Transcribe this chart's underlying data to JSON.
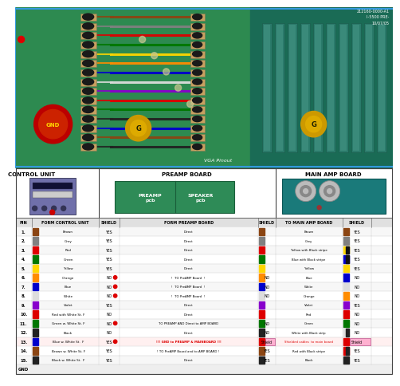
{
  "rows": [
    {
      "pin": "1.",
      "ctrl": "Brown",
      "ctrl_color": "#8B4513",
      "ctrl_shield": "YES",
      "ctrl_shield_dot": false,
      "preamp": "Direct",
      "preamp_color": "#8B4513",
      "preamp_shield": "",
      "preamp_shield_is_shield": false,
      "amp": "Brown",
      "amp_color": "#8B4513",
      "amp_stripe_color": "",
      "amp_shield": "YES",
      "amp_shield_is_shield": false,
      "row_highlight": false
    },
    {
      "pin": "2.",
      "ctrl": "Grey",
      "ctrl_color": "#808080",
      "ctrl_shield": "YES",
      "ctrl_shield_dot": false,
      "preamp": "Direct",
      "preamp_color": "#808080",
      "preamp_shield": "",
      "preamp_shield_is_shield": false,
      "amp": "Grey",
      "amp_color": "#808080",
      "amp_stripe_color": "",
      "amp_shield": "YES",
      "amp_shield_is_shield": false,
      "row_highlight": false
    },
    {
      "pin": "3.",
      "ctrl": "Red",
      "ctrl_color": "#DD0000",
      "ctrl_shield": "YES",
      "ctrl_shield_dot": false,
      "preamp": "Direct",
      "preamp_color": "#DD0000",
      "preamp_shield": "",
      "preamp_shield_is_shield": false,
      "amp": "Yellow with Black stripe",
      "amp_color": "#FFD700",
      "amp_stripe_color": "#111111",
      "amp_shield": "YES",
      "amp_shield_is_shield": false,
      "row_highlight": false
    },
    {
      "pin": "4.",
      "ctrl": "Green",
      "ctrl_color": "#007700",
      "ctrl_shield": "YES",
      "ctrl_shield_dot": false,
      "preamp": "Direct",
      "preamp_color": "#007700",
      "preamp_shield": "",
      "preamp_shield_is_shield": false,
      "amp": "Blue with Black stripe",
      "amp_color": "#0000CC",
      "amp_stripe_color": "#111111",
      "amp_shield": "YES",
      "amp_shield_is_shield": false,
      "row_highlight": false
    },
    {
      "pin": "5.",
      "ctrl": "Yellow",
      "ctrl_color": "#FFD700",
      "ctrl_shield": "YES",
      "ctrl_shield_dot": false,
      "preamp": "Direct",
      "preamp_color": "#FFD700",
      "preamp_shield": "",
      "preamp_shield_is_shield": false,
      "amp": "Yellow",
      "amp_color": "#FFD700",
      "amp_stripe_color": "",
      "amp_shield": "YES",
      "amp_shield_is_shield": false,
      "row_highlight": false
    },
    {
      "pin": "6.",
      "ctrl": "Orange",
      "ctrl_color": "#FF8C00",
      "ctrl_shield": "NO",
      "ctrl_shield_dot": true,
      "preamp": "!  TO PreAMP Board  !",
      "preamp_color": "#FF8C00",
      "preamp_shield": "NO",
      "preamp_shield_is_shield": false,
      "amp": "Blue",
      "amp_color": "#0000CC",
      "amp_stripe_color": "",
      "amp_shield": "NO",
      "amp_shield_is_shield": false,
      "row_highlight": false
    },
    {
      "pin": "7.",
      "ctrl": "Blue",
      "ctrl_color": "#0000CC",
      "ctrl_shield": "NO",
      "ctrl_shield_dot": true,
      "preamp": "!  TO PreAMP Board  !",
      "preamp_color": "#0000CC",
      "preamp_shield": "NO",
      "preamp_shield_is_shield": false,
      "amp": "White",
      "amp_color": "#DDDDDD",
      "amp_stripe_color": "",
      "amp_shield": "NO",
      "amp_shield_is_shield": false,
      "row_highlight": false
    },
    {
      "pin": "8.",
      "ctrl": "White",
      "ctrl_color": "#DDDDDD",
      "ctrl_shield": "NO",
      "ctrl_shield_dot": true,
      "preamp": "!  TO PreAMP Board  !",
      "preamp_color": "#DDDDDD",
      "preamp_shield": "NO",
      "preamp_shield_is_shield": false,
      "amp": "Orange",
      "amp_color": "#FF8C00",
      "amp_stripe_color": "",
      "amp_shield": "NO",
      "amp_shield_is_shield": false,
      "row_highlight": false
    },
    {
      "pin": "9.",
      "ctrl": "Violet",
      "ctrl_color": "#8800CC",
      "ctrl_shield": "YES",
      "ctrl_shield_dot": false,
      "preamp": "Direct",
      "preamp_color": "#8800CC",
      "preamp_shield": "",
      "preamp_shield_is_shield": false,
      "amp": "Violet",
      "amp_color": "#8800CC",
      "amp_stripe_color": "",
      "amp_shield": "YES",
      "amp_shield_is_shield": false,
      "row_highlight": false
    },
    {
      "pin": "10.",
      "ctrl": "Red with White St. F",
      "ctrl_color": "#DD0000",
      "ctrl_shield": "NO",
      "ctrl_shield_dot": false,
      "preamp": "Direct",
      "preamp_color": "#DD0000",
      "preamp_shield": "",
      "preamp_shield_is_shield": false,
      "amp": "Red",
      "amp_color": "#DD0000",
      "amp_stripe_color": "",
      "amp_shield": "NO",
      "amp_shield_is_shield": false,
      "row_highlight": false
    },
    {
      "pin": "11.",
      "ctrl": "Green w. White St. F",
      "ctrl_color": "#007700",
      "ctrl_shield": "NO",
      "ctrl_shield_dot": true,
      "preamp": "TO PREAMP AND Direct to AMP BOARD",
      "preamp_color": "#007700",
      "preamp_shield": "NO",
      "preamp_shield_is_shield": false,
      "amp": "Green",
      "amp_color": "#007700",
      "amp_stripe_color": "",
      "amp_shield": "NO",
      "amp_shield_is_shield": false,
      "row_highlight": false
    },
    {
      "pin": "12.",
      "ctrl": "Black",
      "ctrl_color": "#222222",
      "ctrl_shield": "NO",
      "ctrl_shield_dot": false,
      "preamp": "Direct",
      "preamp_color": "#222222",
      "preamp_shield": "NO",
      "preamp_shield_is_shield": false,
      "amp": "White with Black strip",
      "amp_color": "#DDDDDD",
      "amp_stripe_color": "#222222",
      "amp_shield": "NO",
      "amp_shield_is_shield": false,
      "row_highlight": false
    },
    {
      "pin": "13.",
      "ctrl": "Blue w. White St.  F",
      "ctrl_color": "#0000CC",
      "ctrl_shield": "YES",
      "ctrl_shield_dot": true,
      "preamp": "!!! GND to PREAMP & MAINBOARD !!!",
      "preamp_color": "#DD0000",
      "preamp_shield": "Shield",
      "preamp_shield_is_shield": true,
      "amp": "Shielded cables  to main board",
      "amp_color": "#DD0000",
      "amp_stripe_color": "",
      "amp_shield": "Shield",
      "amp_shield_is_shield": true,
      "row_highlight": true
    },
    {
      "pin": "14.",
      "ctrl": "Brown w. White St. F",
      "ctrl_color": "#8B4513",
      "ctrl_shield": "YES",
      "ctrl_shield_dot": false,
      "preamp": "! TO PreAMP Board and to AMP BOARD !",
      "preamp_color": "#8B4513",
      "preamp_shield": "YES",
      "preamp_shield_is_shield": false,
      "amp": "Red with Black stripe",
      "amp_color": "#DD0000",
      "amp_stripe_color": "#222222",
      "amp_shield": "YES",
      "amp_shield_is_shield": false,
      "row_highlight": false
    },
    {
      "pin": "15.",
      "ctrl": "Black w. White St.  F",
      "ctrl_color": "#222222",
      "ctrl_shield": "YES",
      "ctrl_shield_dot": false,
      "preamp": "Direct",
      "preamp_color": "#222222",
      "preamp_shield": "YES",
      "preamp_shield_is_shield": false,
      "amp": "Black",
      "amp_color": "#222222",
      "amp_stripe_color": "",
      "amp_shield": "YES",
      "amp_shield_is_shield": false,
      "row_highlight": false
    }
  ],
  "bg_color": "#FFFFFF",
  "pcb_bg": "#2D8A50",
  "header_texts": [
    "PIN",
    "FORM CONTROL UNIT",
    "SHIELD",
    "FORM PREAMP BOARD",
    "SHIELD",
    "TO MAIN AMP BOARD",
    "SHIELD"
  ],
  "ctrl_unit_label": "CONTROL UNIT",
  "preamp_label": "PREAMP BOARD",
  "main_amp_label": "MAIN AMP BOARD",
  "preamp_pcb_label": "PREAMP\npcb",
  "speaker_pcb_label": "SPEAKER\npcb",
  "gnd_label": "GND",
  "vga_label": "VGA Pinout",
  "pcb_id": "212160-0000-A1"
}
